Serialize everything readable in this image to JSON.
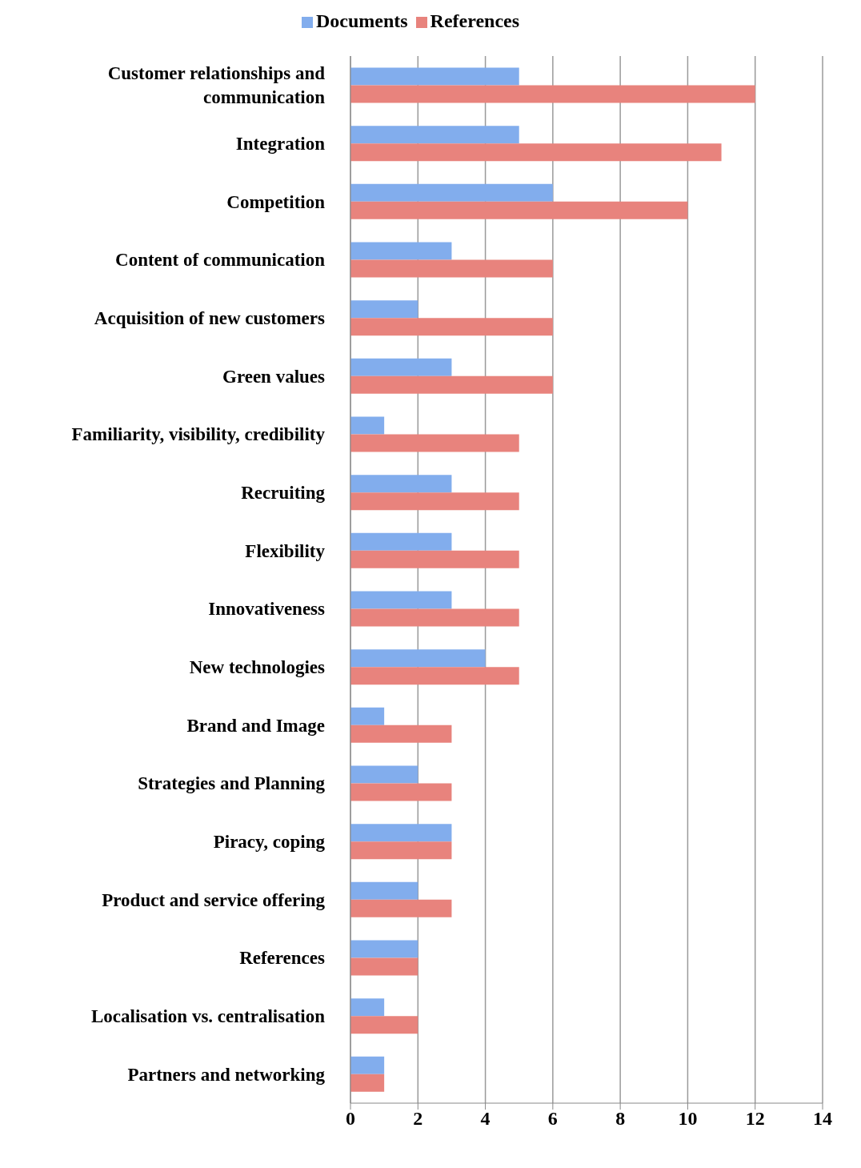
{
  "chart_data": {
    "type": "bar",
    "orientation": "horizontal",
    "categories": [
      "Customer relationships and communication",
      "Integration",
      "Competition",
      "Content of communication",
      "Acquisition of new customers",
      "Green values",
      "Familiarity, visibility, credibility",
      "Recruiting",
      "Flexibility",
      "Innovativeness",
      "New technologies",
      "Brand and Image",
      "Strategies and Planning",
      "Piracy, coping",
      "Product and service offering",
      "References",
      "Localisation vs. centralisation",
      "Partners and networking"
    ],
    "series": [
      {
        "name": "Documents",
        "color": "#82aded",
        "values": [
          5,
          5,
          6,
          3,
          2,
          3,
          1,
          3,
          3,
          3,
          4,
          1,
          2,
          3,
          2,
          2,
          1,
          1
        ]
      },
      {
        "name": "References",
        "color": "#e8837d",
        "values": [
          12,
          11,
          10,
          6,
          6,
          6,
          5,
          5,
          5,
          5,
          5,
          3,
          3,
          3,
          3,
          2,
          2,
          1
        ]
      }
    ],
    "xlim": [
      0,
      14
    ],
    "xticks": [
      0,
      2,
      4,
      6,
      8,
      10,
      12,
      14
    ],
    "grid": "x",
    "legend": "top"
  }
}
